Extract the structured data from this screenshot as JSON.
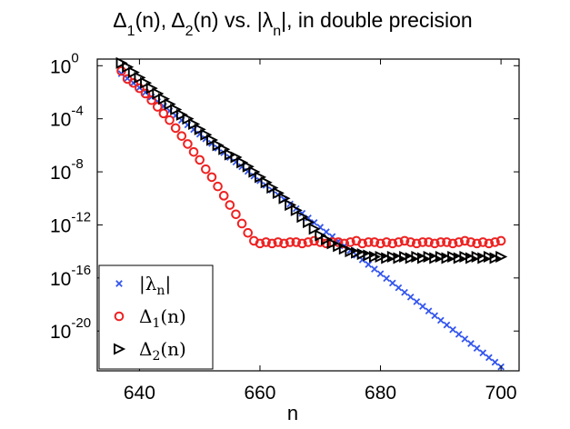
{
  "chart_data": {
    "type": "scatter",
    "title": {
      "parts": [
        "Δ",
        "1",
        "(n), Δ",
        "2",
        "(n)  vs. |λ",
        "n",
        "|, in double precision"
      ]
    },
    "xlabel": "n",
    "ylabel": "",
    "xlim": [
      633,
      703
    ],
    "ylim_log10": [
      -23,
      0.5
    ],
    "y_scale": "log",
    "x_ticks": [
      640,
      660,
      680,
      700
    ],
    "x_tick_labels": [
      "640",
      "660",
      "680",
      "700"
    ],
    "y_ticks_log10": [
      0,
      -4,
      -8,
      -12,
      -16,
      -20
    ],
    "y_tick_labels": [
      {
        "base": "10",
        "exp": "0"
      },
      {
        "base": "10",
        "exp": "-4"
      },
      {
        "base": "10",
        "exp": "-8"
      },
      {
        "base": "10",
        "exp": "-12"
      },
      {
        "base": "10",
        "exp": "-16"
      },
      {
        "base": "10",
        "exp": "-20"
      }
    ],
    "grid": false,
    "legend_position": "bottom-left",
    "series": [
      {
        "name": "|λn|",
        "legend": {
          "pre": "|λ",
          "sub": "n",
          "post": "|"
        },
        "marker": "x",
        "color": "#3355ee",
        "x": [
          637,
          700
        ],
        "y_log10": [
          -0.6,
          -22.7
        ],
        "x_step": 1
      },
      {
        "name": "Δ1(n)",
        "legend": {
          "pre": "Δ",
          "sub": "1",
          "post": "(n)"
        },
        "marker": "circle",
        "color": "#ee2222",
        "x": [
          637,
          638,
          639,
          640,
          641,
          642,
          643,
          644,
          645,
          646,
          647,
          648,
          649,
          650,
          651,
          652,
          653,
          654,
          655,
          656,
          657,
          658,
          659,
          660,
          661,
          662,
          663,
          664,
          665,
          666,
          667,
          668,
          669,
          670,
          671,
          672,
          673,
          674,
          675,
          676,
          677,
          678,
          679,
          680,
          681,
          682,
          683,
          684,
          685,
          686,
          687,
          688,
          689,
          690,
          691,
          692,
          693,
          694,
          695,
          696,
          697,
          698,
          699,
          700
        ],
        "y_log10": [
          -0.4,
          -1.0,
          -1.3,
          -1.7,
          -2.1,
          -2.6,
          -3.1,
          -3.6,
          -4.1,
          -4.7,
          -5.3,
          -5.9,
          -6.5,
          -7.1,
          -7.8,
          -8.4,
          -9.1,
          -9.8,
          -10.5,
          -11.2,
          -11.9,
          -12.6,
          -13.2,
          -13.4,
          -13.3,
          -13.4,
          -13.3,
          -13.4,
          -13.3,
          -13.3,
          -13.4,
          -13.3,
          -13.2,
          -13.3,
          -13.4,
          -13.3,
          -13.3,
          -13.4,
          -13.3,
          -13.2,
          -13.4,
          -13.3,
          -13.3,
          -13.4,
          -13.3,
          -13.4,
          -13.3,
          -13.2,
          -13.3,
          -13.4,
          -13.3,
          -13.3,
          -13.4,
          -13.3,
          -13.3,
          -13.4,
          -13.3,
          -13.2,
          -13.3,
          -13.4,
          -13.3,
          -13.4,
          -13.3,
          -13.2
        ]
      },
      {
        "name": "Δ2(n)",
        "legend": {
          "pre": "Δ",
          "sub": "2",
          "post": "(n)"
        },
        "marker": "triangle-right",
        "color": "#000000",
        "x": [
          637,
          638,
          639,
          640,
          641,
          642,
          643,
          644,
          645,
          646,
          647,
          648,
          649,
          650,
          651,
          652,
          653,
          654,
          655,
          656,
          657,
          658,
          659,
          660,
          661,
          662,
          663,
          664,
          665,
          666,
          667,
          668,
          669,
          670,
          671,
          672,
          673,
          674,
          675,
          676,
          677,
          678,
          679,
          680,
          681,
          682,
          683,
          684,
          685,
          686,
          687,
          688,
          689,
          690,
          691,
          692,
          693,
          694,
          695,
          696,
          697,
          698,
          699,
          700
        ],
        "y_log10": [
          0.2,
          -0.1,
          -0.5,
          -0.9,
          -1.3,
          -1.7,
          -2.1,
          -2.5,
          -2.9,
          -3.3,
          -3.7,
          -4.0,
          -4.4,
          -4.8,
          -5.2,
          -5.6,
          -6.0,
          -6.3,
          -6.7,
          -6.9,
          -7.3,
          -7.6,
          -8.0,
          -8.4,
          -8.8,
          -9.2,
          -9.6,
          -10.0,
          -10.5,
          -10.9,
          -11.4,
          -11.8,
          -12.3,
          -12.8,
          -13.1,
          -13.4,
          -13.6,
          -13.8,
          -14.0,
          -14.1,
          -14.2,
          -14.3,
          -14.4,
          -14.4,
          -14.5,
          -14.4,
          -14.5,
          -14.4,
          -14.5,
          -14.4,
          -14.5,
          -14.4,
          -14.5,
          -14.4,
          -14.5,
          -14.4,
          -14.5,
          -14.4,
          -14.5,
          -14.4,
          -14.5,
          -14.4,
          -14.5,
          -14.4
        ]
      }
    ]
  }
}
